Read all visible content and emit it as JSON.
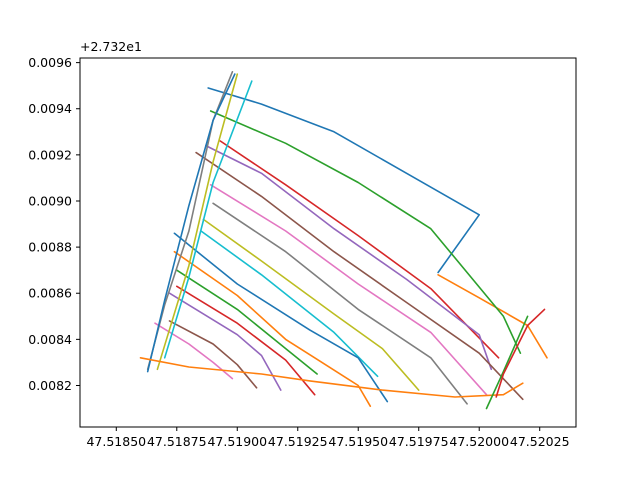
{
  "chart_data": {
    "type": "line",
    "title": "",
    "xlabel": "",
    "ylabel": "",
    "y_offset_label": "+2.732e1",
    "xlim": [
      47.51835,
      47.5204
    ],
    "ylim": [
      0.00802,
      0.00962
    ],
    "xticks": [
      47.5185,
      47.51875,
      47.519,
      47.51925,
      47.5195,
      47.51975,
      47.52,
      47.52025
    ],
    "xtick_labels": [
      "47.51850",
      "47.51875",
      "47.51900",
      "47.51925",
      "47.51950",
      "47.51975",
      "47.52000",
      "47.52025"
    ],
    "yticks": [
      0.0082,
      0.0084,
      0.0086,
      0.0088,
      0.009,
      0.0092,
      0.0094,
      0.0096
    ],
    "ytick_labels": [
      "0.0082",
      "0.0084",
      "0.0086",
      "0.0088",
      "0.0090",
      "0.0092",
      "0.0094",
      "0.0096"
    ],
    "grid": false,
    "legend": false,
    "series": [
      {
        "color": "#1f77b4",
        "points": [
          [
            47.51888,
            0.00949
          ],
          [
            47.5191,
            0.00942
          ],
          [
            47.5194,
            0.0093
          ],
          [
            47.5197,
            0.00912
          ],
          [
            47.52,
            0.00894
          ],
          [
            47.51983,
            0.00869
          ]
        ]
      },
      {
        "color": "#ff7f0e",
        "points": [
          [
            47.51983,
            0.00868
          ],
          [
            47.52,
            0.00858
          ],
          [
            47.5202,
            0.00846
          ],
          [
            47.52028,
            0.00832
          ]
        ]
      },
      {
        "color": "#2ca02c",
        "points": [
          [
            47.51889,
            0.00939
          ],
          [
            47.5192,
            0.00925
          ],
          [
            47.5195,
            0.00908
          ],
          [
            47.5198,
            0.00888
          ],
          [
            47.5201,
            0.0085
          ],
          [
            47.52017,
            0.00834
          ]
        ]
      },
      {
        "color": "#d62728",
        "points": [
          [
            47.51893,
            0.00926
          ],
          [
            47.5192,
            0.00907
          ],
          [
            47.5195,
            0.00885
          ],
          [
            47.5198,
            0.00862
          ],
          [
            47.52008,
            0.00832
          ]
        ]
      },
      {
        "color": "#9467bd",
        "points": [
          [
            47.51887,
            0.00924
          ],
          [
            47.5191,
            0.00912
          ],
          [
            47.5194,
            0.00888
          ],
          [
            47.5197,
            0.00866
          ],
          [
            47.52,
            0.00842
          ],
          [
            47.52005,
            0.00827
          ]
        ]
      },
      {
        "color": "#8c564b",
        "points": [
          [
            47.51883,
            0.00921
          ],
          [
            47.5191,
            0.00902
          ],
          [
            47.5194,
            0.00878
          ],
          [
            47.5197,
            0.00856
          ],
          [
            47.52,
            0.00834
          ],
          [
            47.52018,
            0.00814
          ]
        ]
      },
      {
        "color": "#e377c2",
        "points": [
          [
            47.51889,
            0.00907
          ],
          [
            47.5192,
            0.00887
          ],
          [
            47.5195,
            0.00864
          ],
          [
            47.5198,
            0.00843
          ],
          [
            47.52003,
            0.00816
          ]
        ]
      },
      {
        "color": "#7f7f7f",
        "points": [
          [
            47.5189,
            0.00899
          ],
          [
            47.5192,
            0.00878
          ],
          [
            47.5195,
            0.00853
          ],
          [
            47.5198,
            0.00832
          ],
          [
            47.51995,
            0.00812
          ]
        ]
      },
      {
        "color": "#bcbd22",
        "points": [
          [
            47.51886,
            0.00892
          ],
          [
            47.5191,
            0.00874
          ],
          [
            47.5194,
            0.00851
          ],
          [
            47.5196,
            0.00836
          ],
          [
            47.51975,
            0.00818
          ]
        ]
      },
      {
        "color": "#17becf",
        "points": [
          [
            47.51885,
            0.00887
          ],
          [
            47.5191,
            0.00868
          ],
          [
            47.5194,
            0.00843
          ],
          [
            47.51958,
            0.00824
          ]
        ]
      },
      {
        "color": "#1f77b4",
        "points": [
          [
            47.51874,
            0.00886
          ],
          [
            47.519,
            0.00864
          ],
          [
            47.5193,
            0.00844
          ],
          [
            47.5195,
            0.00832
          ],
          [
            47.51962,
            0.00813
          ]
        ]
      },
      {
        "color": "#ff7f0e",
        "points": [
          [
            47.51874,
            0.00878
          ],
          [
            47.519,
            0.00859
          ],
          [
            47.5192,
            0.0084
          ],
          [
            47.51932,
            0.00832
          ],
          [
            47.5195,
            0.0082
          ],
          [
            47.51955,
            0.00811
          ]
        ]
      },
      {
        "color": "#2ca02c",
        "points": [
          [
            47.51875,
            0.0087
          ],
          [
            47.519,
            0.00853
          ],
          [
            47.5192,
            0.00836
          ],
          [
            47.51933,
            0.00825
          ]
        ]
      },
      {
        "color": "#d62728",
        "points": [
          [
            47.51875,
            0.00863
          ],
          [
            47.519,
            0.00847
          ],
          [
            47.5192,
            0.00831
          ],
          [
            47.51932,
            0.00816
          ]
        ]
      },
      {
        "color": "#9467bd",
        "points": [
          [
            47.51872,
            0.0086
          ],
          [
            47.519,
            0.00842
          ],
          [
            47.5191,
            0.00833
          ],
          [
            47.51918,
            0.00818
          ]
        ]
      },
      {
        "color": "#8c564b",
        "points": [
          [
            47.51872,
            0.00848
          ],
          [
            47.5189,
            0.00838
          ],
          [
            47.519,
            0.00829
          ],
          [
            47.51908,
            0.00819
          ]
        ]
      },
      {
        "color": "#e377c2",
        "points": [
          [
            47.51866,
            0.00847
          ],
          [
            47.5188,
            0.00838
          ],
          [
            47.5189,
            0.0083
          ],
          [
            47.51898,
            0.00823
          ]
        ]
      },
      {
        "color": "#7f7f7f",
        "points": [
          [
            47.51863,
            0.00827
          ],
          [
            47.5187,
            0.00855
          ],
          [
            47.5188,
            0.00887
          ],
          [
            47.5189,
            0.00935
          ],
          [
            47.51898,
            0.00956
          ]
        ]
      },
      {
        "color": "#bcbd22",
        "points": [
          [
            47.51867,
            0.00827
          ],
          [
            47.5188,
            0.00872
          ],
          [
            47.5189,
            0.00917
          ],
          [
            47.519,
            0.00955
          ]
        ]
      },
      {
        "color": "#17becf",
        "points": [
          [
            47.5187,
            0.00832
          ],
          [
            47.5188,
            0.00867
          ],
          [
            47.5189,
            0.00908
          ],
          [
            47.51906,
            0.00952
          ]
        ]
      },
      {
        "color": "#1f77b4",
        "points": [
          [
            47.51863,
            0.00826
          ],
          [
            47.5187,
            0.00857
          ],
          [
            47.5188,
            0.00898
          ],
          [
            47.5189,
            0.00935
          ],
          [
            47.51899,
            0.00955
          ]
        ]
      },
      {
        "color": "#ff7f0e",
        "points": [
          [
            47.5186,
            0.00832
          ],
          [
            47.5188,
            0.00828
          ],
          [
            47.5191,
            0.00825
          ],
          [
            47.5193,
            0.00822
          ],
          [
            47.5196,
            0.00818
          ],
          [
            47.5199,
            0.00815
          ],
          [
            47.5201,
            0.00816
          ],
          [
            47.52018,
            0.00821
          ]
        ]
      },
      {
        "color": "#2ca02c",
        "points": [
          [
            47.52003,
            0.0081
          ],
          [
            47.5201,
            0.00826
          ],
          [
            47.5202,
            0.0085
          ]
        ]
      },
      {
        "color": "#d62728",
        "points": [
          [
            47.52007,
            0.00815
          ],
          [
            47.5201,
            0.00825
          ],
          [
            47.5202,
            0.00846
          ],
          [
            47.52027,
            0.00853
          ]
        ]
      }
    ]
  }
}
